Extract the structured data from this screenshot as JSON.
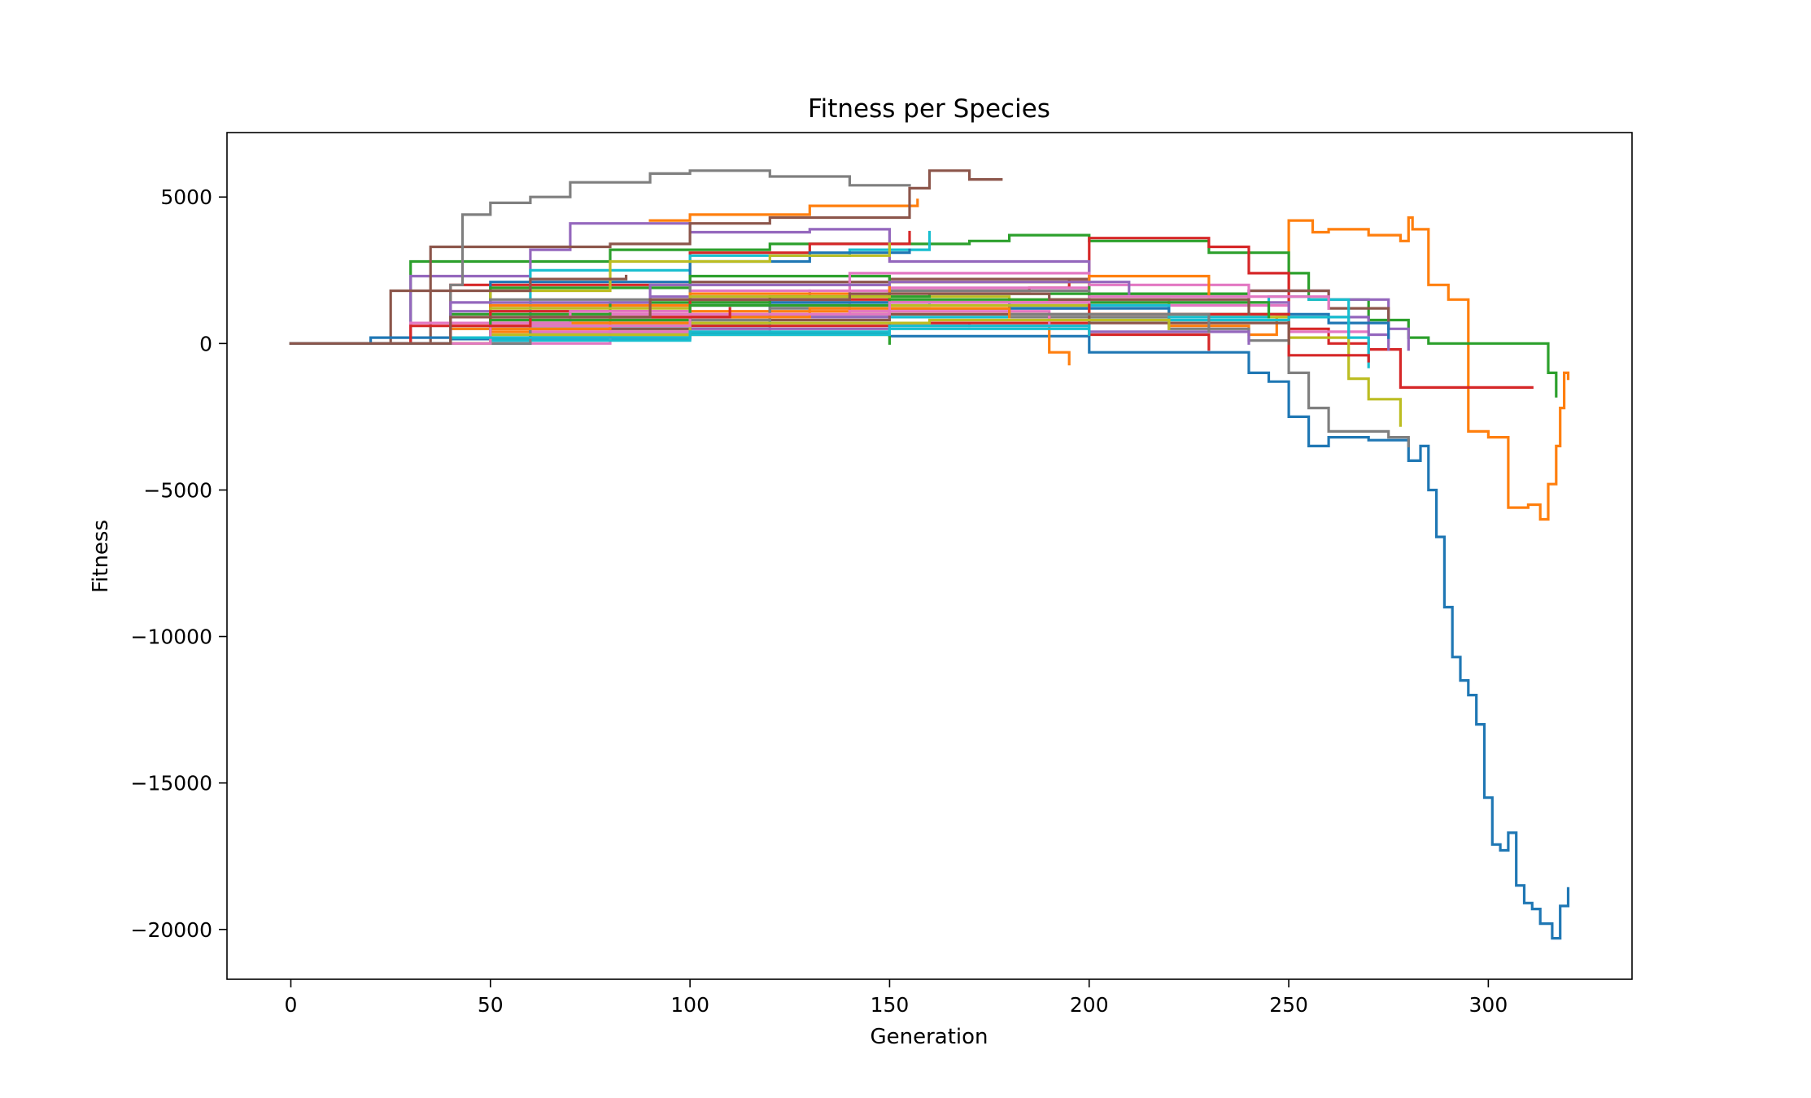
{
  "chart_data": {
    "type": "line",
    "title": "Fitness per Species",
    "xlabel": "Generation",
    "ylabel": "Fitness",
    "xlim": [
      -16,
      336
    ],
    "ylim": [
      -21700,
      7200
    ],
    "xticks": [
      0,
      50,
      100,
      150,
      200,
      250,
      300
    ],
    "yticks": [
      5000,
      0,
      -5000,
      -10000,
      -15000,
      -20000
    ],
    "ytick_labels": [
      "5000",
      "0",
      "−5000",
      "−10000",
      "−15000",
      "−20000"
    ],
    "grid": false,
    "legend": "none",
    "palette": [
      "#1f77b4",
      "#ff7f0e",
      "#2ca02c",
      "#d62728",
      "#9467bd",
      "#8c564b",
      "#e377c2",
      "#7f7f7f",
      "#bcbd22",
      "#17becf"
    ],
    "series": [
      {
        "color": "#1f77b4",
        "x": [
          0,
          40,
          100,
          150,
          200,
          240,
          245,
          250,
          255,
          260,
          270,
          280,
          283,
          285,
          287,
          289,
          291,
          293,
          295,
          297,
          299,
          301,
          303,
          305,
          307,
          309,
          311,
          313,
          316,
          318,
          320
        ],
        "y": [
          0,
          150,
          350,
          250,
          -300,
          -1000,
          -1300,
          -2500,
          -3500,
          -3200,
          -3300,
          -4000,
          -3500,
          -5000,
          -6600,
          -9000,
          -10700,
          -11500,
          -12000,
          -13000,
          -15500,
          -17100,
          -17300,
          -16700,
          -18500,
          -19100,
          -19300,
          -19800,
          -20300,
          -19200,
          -18600
        ]
      },
      {
        "color": "#ff7f0e",
        "x": [
          0,
          50,
          100,
          150,
          180,
          200,
          220,
          240,
          247,
          250,
          256,
          260,
          270,
          278,
          280,
          281,
          285,
          290,
          295,
          300,
          305,
          310,
          313,
          315,
          317,
          318,
          319,
          320
        ],
        "y": [
          0,
          400,
          900,
          1200,
          1300,
          1000,
          600,
          300,
          900,
          4200,
          3800,
          3900,
          3700,
          3500,
          4300,
          3900,
          2000,
          1500,
          -3000,
          -3200,
          -5600,
          -5500,
          -6000,
          -4800,
          -3500,
          -2200,
          -1000,
          -1200
        ]
      },
      {
        "color": "#ff7f0e",
        "x": [
          90,
          100,
          130,
          157
        ],
        "y": [
          4200,
          4400,
          4700,
          4900
        ]
      },
      {
        "color": "#2ca02c",
        "x": [
          0,
          30,
          80,
          120,
          170,
          180,
          200,
          230,
          250,
          255,
          270,
          280,
          285,
          310,
          315,
          317
        ],
        "y": [
          0,
          2800,
          3200,
          3400,
          3500,
          3700,
          3500,
          3100,
          2400,
          1500,
          800,
          200,
          0,
          0,
          -1000,
          -1800
        ]
      },
      {
        "color": "#2ca02c",
        "x": [
          0,
          60,
          100,
          150
        ],
        "y": [
          0,
          300,
          300,
          0
        ]
      },
      {
        "color": "#d62728",
        "x": [
          0,
          50,
          100,
          150,
          185,
          195,
          200,
          230,
          240,
          250,
          260,
          270,
          278,
          311
        ],
        "y": [
          0,
          800,
          1400,
          1800,
          1900,
          2200,
          3600,
          3300,
          2400,
          500,
          0,
          -200,
          -1500,
          -1500
        ]
      },
      {
        "color": "#d62728",
        "x": [
          0,
          40,
          100,
          130,
          155
        ],
        "y": [
          0,
          2000,
          3100,
          3400,
          3800
        ]
      },
      {
        "color": "#9467bd",
        "x": [
          0,
          30,
          60,
          70,
          100,
          130,
          150,
          200,
          240,
          260,
          275,
          280
        ],
        "y": [
          0,
          2300,
          3200,
          4100,
          3800,
          3900,
          2800,
          1700,
          1800,
          1500,
          500,
          -200
        ]
      },
      {
        "color": "#9467bd",
        "x": [
          0,
          40,
          90,
          130
        ],
        "y": [
          0,
          1100,
          1600,
          1800
        ]
      },
      {
        "color": "#8c564b",
        "x": [
          0,
          35,
          80,
          100,
          120,
          155,
          160,
          170,
          178
        ],
        "y": [
          0,
          3300,
          3400,
          4100,
          4300,
          5300,
          5900,
          5600,
          5600
        ]
      },
      {
        "color": "#8c564b",
        "x": [
          0,
          50,
          100,
          150,
          200,
          240,
          260,
          275
        ],
        "y": [
          0,
          1300,
          2100,
          2200,
          1700,
          1800,
          1200,
          500
        ]
      },
      {
        "color": "#e377c2",
        "x": [
          0,
          60,
          100,
          150,
          200,
          250,
          270
        ],
        "y": [
          0,
          1300,
          1800,
          1900,
          1300,
          400,
          -600
        ]
      },
      {
        "color": "#e377c2",
        "x": [
          0,
          60,
          120,
          170
        ],
        "y": [
          0,
          400,
          700,
          600
        ]
      },
      {
        "color": "#7f7f7f",
        "x": [
          0,
          40,
          43,
          50,
          60,
          70,
          90,
          100,
          120,
          140,
          155
        ],
        "y": [
          0,
          2000,
          4400,
          4800,
          5000,
          5500,
          5800,
          5900,
          5700,
          5400,
          5400
        ]
      },
      {
        "color": "#7f7f7f",
        "x": [
          0,
          60,
          120,
          180,
          220,
          240,
          250,
          255,
          260,
          275,
          280
        ],
        "y": [
          0,
          700,
          1000,
          900,
          500,
          100,
          -1000,
          -2200,
          -3000,
          -3200,
          -3500
        ]
      },
      {
        "color": "#bcbd22",
        "x": [
          0,
          60,
          120,
          180,
          220,
          250,
          265,
          270,
          278
        ],
        "y": [
          0,
          900,
          1600,
          1500,
          900,
          200,
          -1200,
          -1900,
          -2800
        ]
      },
      {
        "color": "#17becf",
        "x": [
          0,
          60,
          100,
          140,
          160
        ],
        "y": [
          0,
          2500,
          3000,
          3200,
          3800
        ]
      },
      {
        "color": "#17becf",
        "x": [
          0,
          60,
          120,
          180,
          220,
          245,
          255,
          265,
          270
        ],
        "y": [
          0,
          600,
          900,
          1300,
          900,
          1600,
          1500,
          200,
          -800
        ]
      },
      {
        "color": "#1f77b4",
        "x": [
          0,
          50,
          100,
          130,
          155
        ],
        "y": [
          0,
          2100,
          2800,
          3100,
          3200
        ]
      },
      {
        "color": "#ff7f0e",
        "x": [
          0,
          40,
          100,
          150,
          190,
          195
        ],
        "y": [
          0,
          700,
          1100,
          1000,
          -300,
          -700
        ]
      },
      {
        "color": "#2ca02c",
        "x": [
          0,
          50,
          100,
          150,
          200,
          240
        ],
        "y": [
          0,
          1900,
          2300,
          2100,
          1700,
          1300
        ]
      },
      {
        "color": "#9467bd",
        "x": [
          0,
          50,
          100,
          150,
          200,
          250,
          270,
          275
        ],
        "y": [
          0,
          500,
          900,
          1200,
          1400,
          900,
          300,
          -200
        ]
      },
      {
        "color": "#bcbd22",
        "x": [
          0,
          50,
          80,
          120,
          150
        ],
        "y": [
          0,
          1800,
          2800,
          3000,
          3400
        ]
      },
      {
        "color": "#d62728",
        "x": [
          0,
          50,
          100,
          150,
          200,
          230
        ],
        "y": [
          0,
          300,
          600,
          700,
          300,
          -200
        ]
      },
      {
        "color": "#8c564b",
        "x": [
          0,
          25,
          60,
          84
        ],
        "y": [
          0,
          1800,
          2200,
          2300
        ]
      },
      {
        "color": "#e377c2",
        "x": [
          0,
          80,
          140,
          200,
          240
        ],
        "y": [
          0,
          1000,
          2400,
          2000,
          1200
        ]
      },
      {
        "color": "#17becf",
        "x": [
          0,
          40,
          100,
          160
        ],
        "y": [
          0,
          500,
          1300,
          1400
        ]
      },
      {
        "color": "#7f7f7f",
        "x": [
          0,
          50,
          100,
          150,
          200
        ],
        "y": [
          0,
          1500,
          2000,
          1800,
          1300
        ]
      },
      {
        "color": "#1f77b4",
        "x": [
          0,
          60,
          120,
          180,
          220,
          260,
          275
        ],
        "y": [
          0,
          900,
          1400,
          1200,
          1000,
          700,
          200
        ]
      },
      {
        "color": "#ff7f0e",
        "x": [
          0,
          50,
          100,
          150,
          200,
          230
        ],
        "y": [
          0,
          1300,
          1700,
          2100,
          2300,
          1600
        ]
      },
      {
        "color": "#2ca02c",
        "x": [
          0,
          40,
          80,
          120,
          160,
          200
        ],
        "y": [
          0,
          1000,
          1400,
          1600,
          1700,
          1500
        ]
      },
      {
        "color": "#bcbd22",
        "x": [
          0,
          50,
          100,
          150,
          200,
          250
        ],
        "y": [
          0,
          1200,
          1600,
          1300,
          1000,
          600
        ]
      },
      {
        "color": "#9467bd",
        "x": [
          0,
          50,
          100,
          150,
          200,
          240
        ],
        "y": [
          0,
          200,
          500,
          600,
          400,
          0
        ]
      },
      {
        "color": "#d62728",
        "x": [
          0,
          50,
          100,
          150,
          200,
          250,
          270
        ],
        "y": [
          0,
          1100,
          1500,
          1400,
          1000,
          -400,
          -600
        ]
      },
      {
        "color": "#e377c2",
        "x": [
          0,
          30,
          70,
          100,
          140,
          190
        ],
        "y": [
          0,
          700,
          1100,
          1300,
          1100,
          600
        ]
      },
      {
        "color": "#17becf",
        "x": [
          0,
          50,
          100,
          150,
          200,
          250,
          265
        ],
        "y": [
          0,
          100,
          300,
          500,
          800,
          900,
          200
        ]
      },
      {
        "color": "#8c564b",
        "x": [
          0,
          50,
          100,
          150,
          200,
          250
        ],
        "y": [
          0,
          500,
          800,
          1000,
          700,
          0
        ]
      },
      {
        "color": "#7f7f7f",
        "x": [
          0,
          60,
          120,
          180,
          230
        ],
        "y": [
          0,
          800,
          1200,
          1000,
          400
        ]
      },
      {
        "color": "#1f77b4",
        "x": [
          0,
          20,
          60,
          100
        ],
        "y": [
          0,
          200,
          300,
          400
        ]
      },
      {
        "color": "#ff7f0e",
        "x": [
          0,
          40,
          80,
          130,
          180
        ],
        "y": [
          0,
          500,
          900,
          1200,
          900
        ]
      },
      {
        "color": "#2ca02c",
        "x": [
          0,
          50,
          100,
          150,
          200,
          245
        ],
        "y": [
          0,
          800,
          1300,
          1500,
          1400,
          900
        ]
      },
      {
        "color": "#bcbd22",
        "x": [
          0,
          50,
          100,
          160,
          220
        ],
        "y": [
          0,
          300,
          700,
          800,
          500
        ]
      },
      {
        "color": "#9467bd",
        "x": [
          0,
          40,
          90,
          150,
          210
        ],
        "y": [
          0,
          1400,
          2000,
          2100,
          1700
        ]
      },
      {
        "color": "#e377c2",
        "x": [
          0,
          50,
          100,
          150,
          200,
          260
        ],
        "y": [
          0,
          600,
          1000,
          1400,
          1600,
          1200
        ]
      },
      {
        "color": "#d62728",
        "x": [
          0,
          30,
          60,
          110
        ],
        "y": [
          0,
          600,
          900,
          1200
        ]
      },
      {
        "color": "#17becf",
        "x": [
          0,
          40,
          100,
          150,
          200
        ],
        "y": [
          0,
          200,
          400,
          600,
          300
        ]
      },
      {
        "color": "#8c564b",
        "x": [
          0,
          40,
          90,
          140,
          190,
          240
        ],
        "y": [
          0,
          900,
          1500,
          1700,
          1500,
          1000
        ]
      }
    ]
  }
}
